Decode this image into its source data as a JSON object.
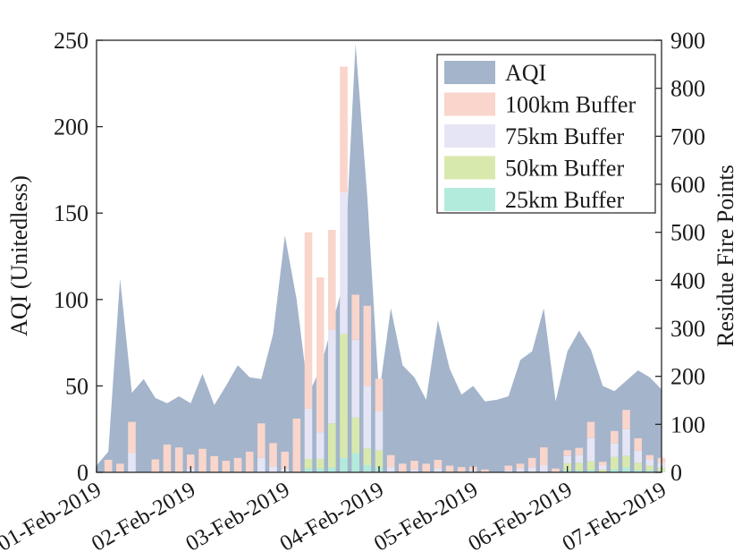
{
  "figure": {
    "background": "#ffffff",
    "axis_color": "#262626",
    "left_axis": {
      "label": "AQI (Unitedless)",
      "min": 0,
      "max": 250,
      "tick_labels": [
        "0",
        "50",
        "100",
        "150",
        "200",
        "250"
      ]
    },
    "right_axis": {
      "label": "Residue Fire Points",
      "min": 0,
      "max": 900,
      "tick_labels": [
        "0",
        "100",
        "200",
        "300",
        "400",
        "500",
        "600",
        "700",
        "800",
        "900"
      ]
    },
    "x_axis": {
      "tick_labels": [
        "01-Feb-2019",
        "02-Feb-2019",
        "03-Feb-2019",
        "04-Feb-2019",
        "05-Feb-2019",
        "06-Feb-2019",
        "07-Feb-2019"
      ],
      "label_rotation_deg": 30
    }
  },
  "legend": {
    "border_color": "#404040",
    "items": [
      {
        "label": "AQI",
        "color": "#a3b4cb",
        "swatch": "aqi-swatch"
      },
      {
        "label": "100km Buffer",
        "color": "#f9d5cb",
        "swatch": "buffer100-swatch"
      },
      {
        "label": "75km Buffer",
        "color": "#e6e5f5",
        "swatch": "buffer75-swatch"
      },
      {
        "label": "50km Buffer",
        "color": "#d8e9ad",
        "swatch": "buffer50-swatch"
      },
      {
        "label": "25km Buffer",
        "color": "#b2ebdc",
        "swatch": "buffer25-swatch"
      }
    ]
  },
  "chart_data": {
    "type": "area+stacked-bar combo",
    "x": {
      "start": "01-Feb-2019 00:00",
      "step_hours": 3,
      "count": 49,
      "day_tick_indices": [
        0,
        8,
        16,
        24,
        32,
        40,
        48
      ]
    },
    "left_axis": {
      "label": "AQI (Unitedless)",
      "range": [
        0,
        250
      ],
      "tick_step": 50
    },
    "right_axis": {
      "label": "Residue Fire Points",
      "range": [
        0,
        900
      ],
      "tick_step": 100
    },
    "grid": "off",
    "legend_position": "upper right inside",
    "bar_stack_order_bottom_to_top": [
      "25km Buffer",
      "50km Buffer",
      "75km Buffer",
      "100km Buffer"
    ],
    "series": [
      {
        "name": "AQI",
        "type": "area",
        "axis": "left",
        "color": "#a3b4cb",
        "values": [
          4,
          12,
          112,
          46,
          54,
          43,
          40,
          44,
          40,
          57,
          39,
          50,
          62,
          55,
          54,
          80,
          137,
          100,
          45,
          60,
          85,
          110,
          248,
          160,
          45,
          95,
          62,
          55,
          42,
          88,
          60,
          45,
          50,
          41,
          42,
          44,
          65,
          70,
          95,
          41,
          70,
          82,
          71,
          50,
          47,
          53,
          59,
          55,
          48
        ]
      },
      {
        "name": "25km Buffer",
        "type": "bar",
        "axis": "right",
        "color": "#b2ebdc",
        "values": [
          0,
          0,
          0,
          0,
          0,
          0,
          0,
          0,
          0,
          0,
          0,
          0,
          0,
          0,
          0,
          0,
          0,
          0,
          8,
          8,
          10,
          30,
          40,
          15,
          10,
          0,
          0,
          0,
          0,
          0,
          0,
          0,
          0,
          0,
          0,
          0,
          0,
          0,
          0,
          0,
          4,
          4,
          5,
          0,
          6,
          10,
          5,
          4,
          2
        ]
      },
      {
        "name": "50km Buffer",
        "type": "bar",
        "axis": "right",
        "color": "#d8e9ad",
        "values": [
          0,
          0,
          0,
          0,
          0,
          0,
          0,
          0,
          0,
          0,
          0,
          0,
          0,
          0,
          0,
          0,
          0,
          0,
          20,
          20,
          92,
          258,
          74,
          35,
          36,
          0,
          0,
          0,
          0,
          0,
          0,
          0,
          0,
          0,
          0,
          0,
          0,
          0,
          0,
          0,
          15,
          16,
          18,
          6,
          26,
          25,
          15,
          10,
          8
        ]
      },
      {
        "name": "75km Buffer",
        "type": "bar",
        "axis": "right",
        "color": "#e6e5f5",
        "values": [
          0,
          0,
          0,
          40,
          0,
          0,
          0,
          0,
          8,
          0,
          0,
          0,
          0,
          0,
          30,
          12,
          8,
          0,
          105,
          55,
          195,
          295,
          162,
          130,
          81,
          11,
          0,
          6,
          0,
          8,
          0,
          0,
          4,
          0,
          0,
          4,
          8,
          10,
          14,
          0,
          15,
          16,
          48,
          8,
          28,
          55,
          25,
          12,
          10
        ]
      },
      {
        "name": "100km Buffer",
        "type": "bar",
        "axis": "right",
        "color": "#f9d5cb",
        "values": [
          0,
          26,
          18,
          65,
          0,
          27,
          58,
          52,
          29,
          49,
          34,
          24,
          30,
          43,
          72,
          49,
          35,
          112,
          367,
          323,
          208,
          262,
          94,
          167,
          68,
          25,
          18,
          18,
          18,
          18,
          14,
          11,
          8,
          6,
          0,
          10,
          10,
          20,
          38,
          8,
          12,
          15,
          34,
          8,
          26,
          40,
          26,
          10,
          10
        ]
      }
    ]
  }
}
